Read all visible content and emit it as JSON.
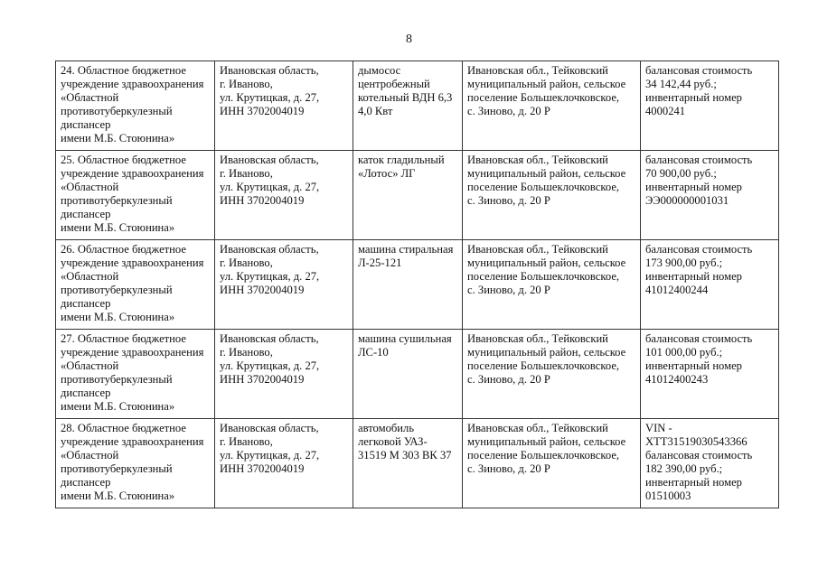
{
  "page_number": "8",
  "rows": [
    {
      "owner": "24. Областное бюджетное\nучреждение здравоохранения\n«Областной\nпротивотуберкулезный\nдиспансер\nимени М.Б. Стоюнина»",
      "address": "Ивановская область,\nг. Иваново,\nул. Крутицкая, д. 27,\nИНН 3702004019",
      "item": "дымосос\nцентробежный\nкотельный ВДН 6,3\n4,0 Квт",
      "location": "Ивановская обл., Тейковский\nмуниципальный район, сельское\nпоселение Большеклочковское,\nс. Зиново, д. 20 Р",
      "details": "балансовая стоимость\n34 142,44 руб.;\nинвентарный номер\n4000241"
    },
    {
      "owner": "25. Областное бюджетное\nучреждение здравоохранения\n«Областной\nпротивотуберкулезный\nдиспансер\nимени М.Б. Стоюнина»",
      "address": "Ивановская область,\nг. Иваново,\nул. Крутицкая, д. 27,\nИНН 3702004019",
      "item": "каток гладильный\n«Лотос» ЛГ",
      "location": "Ивановская обл., Тейковский\nмуниципальный район, сельское\nпоселение Большеклочковское,\nс. Зиново, д. 20 Р",
      "details": "балансовая стоимость\n70 900,00 руб.;\nинвентарный номер\nЭЭ000000001031"
    },
    {
      "owner": "26. Областное бюджетное\nучреждение здравоохранения\n«Областной\nпротивотуберкулезный\nдиспансер\nимени М.Б. Стоюнина»",
      "address": "Ивановская область,\nг. Иваново,\nул. Крутицкая, д. 27,\nИНН 3702004019",
      "item": "машина стиральная\nЛ-25-121",
      "location": "Ивановская обл., Тейковский\nмуниципальный район, сельское\nпоселение Большеклочковское,\nс. Зиново, д. 20 Р",
      "details": "балансовая стоимость\n173 900,00 руб.;\nинвентарный номер\n41012400244"
    },
    {
      "owner": "27. Областное бюджетное\nучреждение здравоохранения\n«Областной\nпротивотуберкулезный\nдиспансер\nимени М.Б. Стоюнина»",
      "address": "Ивановская область,\nг. Иваново,\nул. Крутицкая, д. 27,\nИНН 3702004019",
      "item": "машина сушильная\nЛС-10",
      "location": "Ивановская обл., Тейковский\nмуниципальный район, сельское\nпоселение Большеклочковское,\nс. Зиново, д. 20 Р",
      "details": "балансовая стоимость\n101 000,00 руб.;\nинвентарный номер\n41012400243"
    },
    {
      "owner": "28. Областное бюджетное\nучреждение здравоохранения\n«Областной\nпротивотуберкулезный\nдиспансер\nимени М.Б. Стоюнина»",
      "address": "Ивановская область,\nг. Иваново,\nул. Крутицкая, д. 27,\nИНН 3702004019",
      "item": "автомобиль\nлегковой УАЗ-\n31519  М 303 ВК 37",
      "location": "Ивановская обл., Тейковский\nмуниципальный район, сельское\nпоселение Большеклочковское,\nс. Зиново, д. 20 Р",
      "details": "VIN -\nXTT31519030543366\nбалансовая стоимость\n182 390,00 руб.;\nинвентарный номер\n01510003"
    }
  ]
}
